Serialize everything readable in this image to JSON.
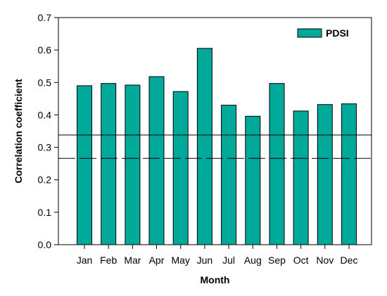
{
  "chart_data": {
    "type": "bar",
    "title": "",
    "xlabel": "Month",
    "ylabel": "Correlation coefficient",
    "categories": [
      "Jan",
      "Feb",
      "Mar",
      "Apr",
      "May",
      "Jun",
      "Jul",
      "Aug",
      "Sep",
      "Oct",
      "Nov",
      "Dec"
    ],
    "series": [
      {
        "name": "PDSI",
        "values": [
          0.49,
          0.497,
          0.492,
          0.518,
          0.472,
          0.605,
          0.43,
          0.396,
          0.497,
          0.412,
          0.432,
          0.434
        ],
        "color": "#00A99A"
      }
    ],
    "ylim": [
      0.0,
      0.7
    ],
    "yticks": [
      "0.0",
      "0.1",
      "0.2",
      "0.3",
      "0.4",
      "0.5",
      "0.6",
      "0.7"
    ],
    "reference_lines": [
      {
        "value": 0.338,
        "style": "solid"
      },
      {
        "value": 0.266,
        "style": "dashed"
      }
    ],
    "legend_position": "top-right",
    "grid": false
  }
}
